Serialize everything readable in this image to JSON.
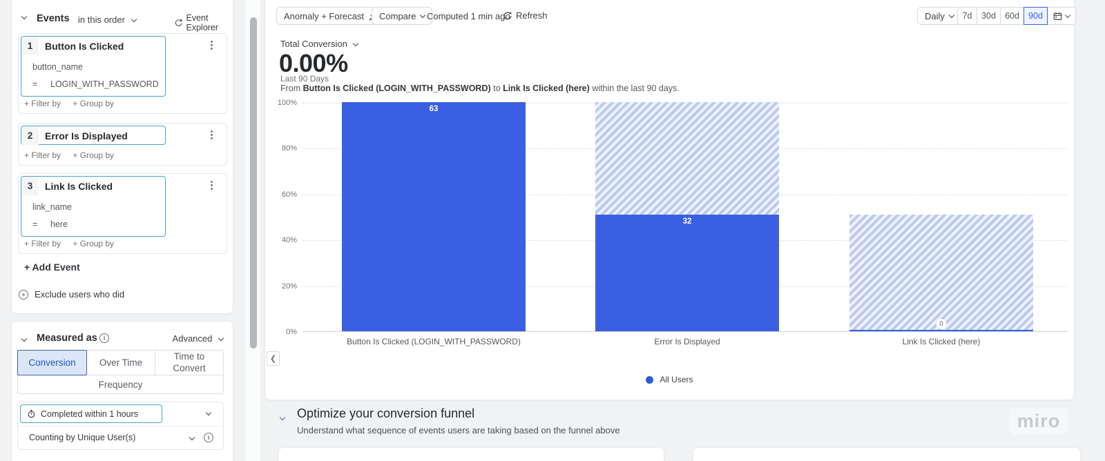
{
  "colors": {
    "accent": "#3b5fe3",
    "bar_solid": "#3b5fe3",
    "bar_hatch_stripe": "#bcc9f1",
    "event_border": "#49a0d5",
    "selected_tab_bg": "#dbe6f7"
  },
  "sidebar": {
    "events": {
      "title": "Events",
      "order": "in this order",
      "explorer": "Event Explorer",
      "items": [
        {
          "num": "1",
          "name": "Button Is Clicked",
          "prop": "button_name",
          "op": "=",
          "value": "LOGIN_WITH_PASSWORD",
          "filter_by": "+ Filter by",
          "group_by": "+ Group by"
        },
        {
          "num": "2",
          "name": "Error Is Displayed",
          "filter_by": "+ Filter by",
          "group_by": "+ Group by"
        },
        {
          "num": "3",
          "name": "Link Is Clicked",
          "prop": "link_name",
          "op": "=",
          "value": "here",
          "filter_by": "+ Filter by",
          "group_by": "+ Group by"
        }
      ],
      "add_event": "+ Add Event",
      "exclude": "Exclude users who did"
    },
    "measured": {
      "title": "Measured as",
      "advanced": "Advanced",
      "tabs": {
        "conversion": "Conversion",
        "over_time": "Over Time",
        "time_to_convert": "Time to Convert",
        "frequency": "Frequency"
      },
      "active_tab": "Conversion",
      "completed_within": "Completed within 1 hours",
      "counting_by": "Counting by Unique User(s)"
    }
  },
  "toolbar": {
    "anomaly": "Anomaly + Forecast",
    "compare": "Compare",
    "computed": "Computed 1 min ago",
    "refresh": "Refresh"
  },
  "daterange": {
    "interval": "Daily",
    "presets": [
      "7d",
      "30d",
      "60d",
      "90d"
    ],
    "selected": "90d"
  },
  "metric": {
    "label": "Total Conversion",
    "value": "0.00%",
    "period": "Last 90 Days",
    "desc_from": "From",
    "desc_event1": "Button Is Clicked (LOGIN_WITH_PASSWORD)",
    "desc_to": "to",
    "desc_event2": "Link Is Clicked (here)",
    "desc_tail": "within the last 90 days."
  },
  "chart_data": {
    "type": "bar",
    "title": "Total Conversion funnel",
    "categories": [
      "Button Is Clicked (LOGIN_WITH_PASSWORD)",
      "Error Is Displayed",
      "Link Is Clicked (here)"
    ],
    "series": [
      {
        "name": "All Users",
        "counts": [
          63,
          32,
          0
        ],
        "conversion_pct": [
          100,
          50.8,
          0
        ],
        "prev_pct": [
          100,
          100,
          50.8
        ]
      }
    ],
    "ylim": [
      0,
      100
    ],
    "yticks": [
      "100%",
      "80%",
      "60%",
      "40%",
      "20%",
      "0%"
    ],
    "grid": "dotted horizontal lines every 20%",
    "legend_position": "bottom-center",
    "bar_style": "solid = converted, hatched = drop-off from previous step"
  },
  "legend": {
    "label": "All Users"
  },
  "insights": {
    "title": "Optimize your conversion funnel",
    "subtitle": "Understand what sequence of events users are taking based on the funnel above"
  },
  "watermark": "miro"
}
